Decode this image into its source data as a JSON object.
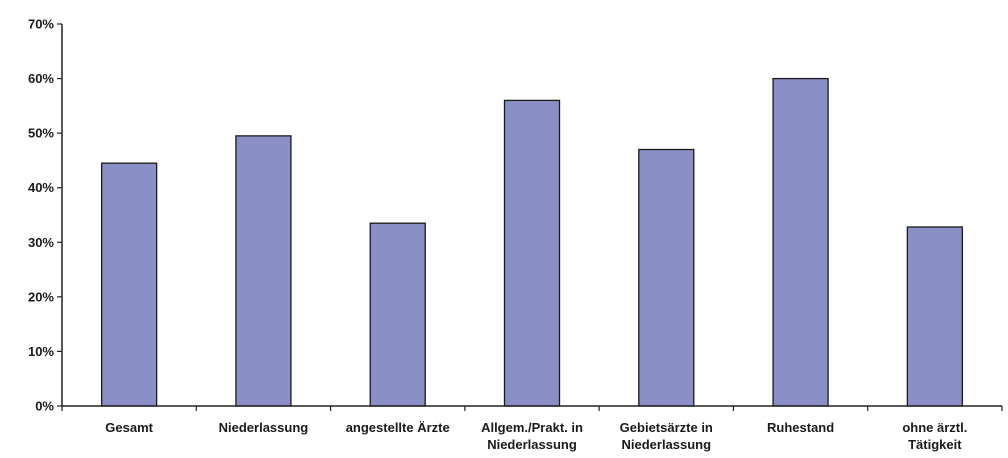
{
  "chart_data": {
    "type": "bar",
    "title": "",
    "xlabel": "",
    "ylabel": "",
    "ylim": [
      0,
      70
    ],
    "y_ticks": [
      0,
      10,
      20,
      30,
      40,
      50,
      60,
      70
    ],
    "y_tick_labels": [
      "0%",
      "10%",
      "20%",
      "30%",
      "40%",
      "50%",
      "60%",
      "70%"
    ],
    "grid": false,
    "legend": "none",
    "bar_color": "#8a8fc8",
    "categories": [
      [
        "Gesamt"
      ],
      [
        "Niederlassung"
      ],
      [
        "angestellte Ärzte"
      ],
      [
        "Allgem./Prakt. in",
        "Niederlassung"
      ],
      [
        "Gebietsärzte in",
        "Niederlassung"
      ],
      [
        "Ruhestand"
      ],
      [
        "ohne ärztl.",
        "Tätigkeit"
      ]
    ],
    "values": [
      44.5,
      49.5,
      33.5,
      56,
      47,
      60,
      32.8
    ]
  }
}
